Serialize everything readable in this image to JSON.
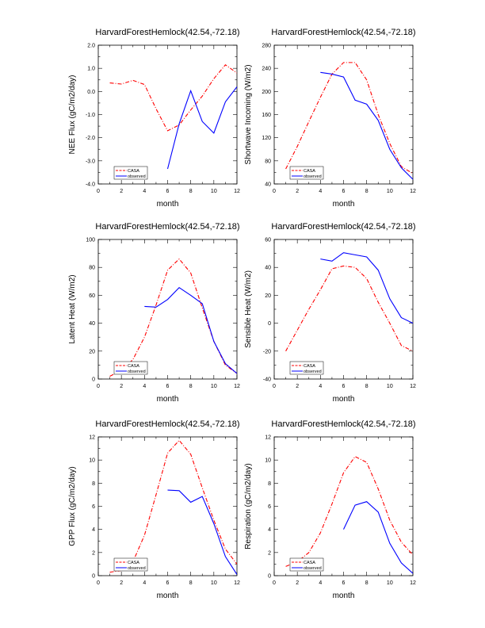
{
  "chart_data": [
    {
      "type": "line",
      "title": "HarvardForestHemlock(42.54,-72.18)",
      "xlabel": "month",
      "ylabel": "NEE Flux (gC/m2/day)",
      "xlim": [
        0,
        12
      ],
      "ylim": [
        -4,
        2
      ],
      "xticks": [
        0,
        2,
        4,
        6,
        8,
        10,
        12
      ],
      "yticks": [
        -4,
        -3,
        -2,
        -1,
        0,
        1,
        2
      ],
      "ytick_labels": [
        "-4.0",
        "-3.0",
        "-2.0",
        "-1.0",
        "0.0",
        "1.0",
        "2.0"
      ],
      "legend": {
        "position": "bottom-left",
        "entries": [
          "CASA",
          "observed"
        ]
      },
      "series": [
        {
          "name": "CASA",
          "color": "#ff0000",
          "dash": "dashed",
          "x": [
            1,
            2,
            3,
            4,
            5,
            6,
            7,
            8,
            9,
            10,
            11,
            12
          ],
          "values": [
            0.37,
            0.32,
            0.48,
            0.3,
            -0.75,
            -1.7,
            -1.45,
            -0.8,
            -0.2,
            0.55,
            1.15,
            0.8
          ]
        },
        {
          "name": "observed",
          "color": "#0000ff",
          "dash": "solid",
          "x": [
            6,
            7,
            8,
            9,
            10,
            11,
            12
          ],
          "values": [
            -3.35,
            -1.4,
            0.03,
            -1.3,
            -1.8,
            -0.45,
            0.2
          ]
        }
      ]
    },
    {
      "type": "line",
      "title": "HarvardForestHemlock(42.54,-72.18)",
      "xlabel": "month",
      "ylabel": "Shortwave Incoming (W/m2)",
      "xlim": [
        0,
        12
      ],
      "ylim": [
        40,
        280
      ],
      "xticks": [
        0,
        2,
        4,
        6,
        8,
        10,
        12
      ],
      "yticks": [
        40,
        80,
        120,
        160,
        200,
        240,
        280
      ],
      "ytick_labels": [
        "40",
        "80",
        "120",
        "160",
        "200",
        "240",
        "280"
      ],
      "legend": {
        "position": "bottom-left",
        "entries": [
          "CASA",
          "observed"
        ]
      },
      "series": [
        {
          "name": "CASA",
          "color": "#ff0000",
          "dash": "dashed",
          "x": [
            1,
            2,
            3,
            4,
            5,
            6,
            7,
            8,
            9,
            10,
            11,
            12
          ],
          "values": [
            66,
            105,
            148,
            190,
            230,
            250,
            250,
            220,
            160,
            110,
            70,
            58
          ]
        },
        {
          "name": "observed",
          "color": "#0000ff",
          "dash": "solid",
          "x": [
            4,
            5,
            6,
            7,
            8,
            9,
            10,
            11,
            12
          ],
          "values": [
            233,
            230,
            225,
            185,
            178,
            150,
            100,
            68,
            48
          ]
        }
      ]
    },
    {
      "type": "line",
      "title": "HarvardForestHemlock(42.54,-72.18)",
      "xlabel": "month",
      "ylabel": "Latent Heat (W/m2)",
      "xlim": [
        0,
        12
      ],
      "ylim": [
        0,
        100
      ],
      "xticks": [
        0,
        2,
        4,
        6,
        8,
        10,
        12
      ],
      "yticks": [
        0,
        20,
        40,
        60,
        80,
        100
      ],
      "ytick_labels": [
        "0",
        "20",
        "40",
        "60",
        "80",
        "100"
      ],
      "legend": {
        "position": "bottom-left",
        "entries": [
          "CASA",
          "observed"
        ]
      },
      "series": [
        {
          "name": "CASA",
          "color": "#ff0000",
          "dash": "dashed",
          "x": [
            1,
            2,
            3,
            4,
            5,
            6,
            7,
            8,
            9,
            10,
            11,
            12
          ],
          "values": [
            2,
            6,
            14,
            30,
            53,
            78,
            86,
            76,
            51,
            27,
            10,
            4
          ]
        },
        {
          "name": "observed",
          "color": "#0000ff",
          "dash": "solid",
          "x": [
            4,
            5,
            6,
            7,
            8,
            9,
            10,
            11,
            12
          ],
          "values": [
            52,
            51.5,
            57,
            65.5,
            60,
            54,
            27,
            11,
            4
          ]
        }
      ]
    },
    {
      "type": "line",
      "title": "HarvardForestHemlock(42.54,-72.18)",
      "xlabel": "month",
      "ylabel": "Sensible Heat (W/m2)",
      "xlim": [
        0,
        12
      ],
      "ylim": [
        -40,
        60
      ],
      "xticks": [
        0,
        2,
        4,
        6,
        8,
        10,
        12
      ],
      "yticks": [
        -40,
        -20,
        0,
        20,
        40,
        60
      ],
      "ytick_labels": [
        "-40",
        "-20",
        "0",
        "20",
        "40",
        "60"
      ],
      "legend": {
        "position": "bottom-left",
        "entries": [
          "CASA",
          "observed"
        ]
      },
      "series": [
        {
          "name": "CASA",
          "color": "#ff0000",
          "dash": "dashed",
          "x": [
            1,
            2,
            3,
            4,
            5,
            6,
            7,
            8,
            9,
            10,
            11,
            12
          ],
          "values": [
            -20,
            -5,
            10,
            24,
            39,
            41,
            40,
            32,
            15,
            0,
            -16,
            -20
          ]
        },
        {
          "name": "observed",
          "color": "#0000ff",
          "dash": "solid",
          "x": [
            4,
            5,
            6,
            7,
            8,
            9,
            10,
            11,
            12
          ],
          "values": [
            46,
            44.5,
            50.5,
            49,
            47.5,
            38,
            17.5,
            4,
            0
          ]
        }
      ]
    },
    {
      "type": "line",
      "title": "HarvardForestHemlock(42.54,-72.18)",
      "xlabel": "month",
      "ylabel": "GPP Flux (gC/m2/day)",
      "xlim": [
        0,
        12
      ],
      "ylim": [
        0,
        12
      ],
      "xticks": [
        0,
        2,
        4,
        6,
        8,
        10,
        12
      ],
      "yticks": [
        0,
        2,
        4,
        6,
        8,
        10,
        12
      ],
      "ytick_labels": [
        "0",
        "2",
        "4",
        "6",
        "8",
        "10",
        "12"
      ],
      "legend": {
        "position": "bottom-left",
        "entries": [
          "CASA",
          "observed"
        ]
      },
      "series": [
        {
          "name": "CASA",
          "color": "#ff0000",
          "dash": "dashed",
          "x": [
            1,
            2,
            3,
            4,
            5,
            6,
            7,
            8,
            9,
            10,
            11,
            12
          ],
          "values": [
            0.3,
            0.45,
            1.2,
            3.5,
            7.0,
            10.6,
            11.7,
            10.5,
            7.6,
            4.8,
            2.3,
            1.0
          ]
        },
        {
          "name": "observed",
          "color": "#0000ff",
          "dash": "solid",
          "x": [
            6,
            7,
            8,
            9,
            10,
            11,
            12
          ],
          "values": [
            7.4,
            7.35,
            6.35,
            6.85,
            4.5,
            1.65,
            0.1
          ]
        }
      ]
    },
    {
      "type": "line",
      "title": "HarvardForestHemlock(42.54,-72.18)",
      "xlabel": "month",
      "ylabel": "Respiration (gC/m2/day)",
      "xlim": [
        0,
        12
      ],
      "ylim": [
        0,
        12
      ],
      "xticks": [
        0,
        2,
        4,
        6,
        8,
        10,
        12
      ],
      "yticks": [
        0,
        2,
        4,
        6,
        8,
        10,
        12
      ],
      "ytick_labels": [
        "0",
        "2",
        "4",
        "6",
        "8",
        "10",
        "12"
      ],
      "legend": {
        "position": "bottom-left",
        "entries": [
          "CASA",
          "observed"
        ]
      },
      "series": [
        {
          "name": "CASA",
          "color": "#ff0000",
          "dash": "dashed",
          "x": [
            1,
            2,
            3,
            4,
            5,
            6,
            7,
            8,
            9,
            10,
            11,
            12
          ],
          "values": [
            0.8,
            1.2,
            2.0,
            3.7,
            6.2,
            8.9,
            10.3,
            9.8,
            7.5,
            4.8,
            2.9,
            1.8
          ]
        },
        {
          "name": "observed",
          "color": "#0000ff",
          "dash": "solid",
          "x": [
            6,
            7,
            8,
            9,
            10,
            11,
            12
          ],
          "values": [
            4.0,
            6.1,
            6.4,
            5.5,
            2.8,
            1.1,
            0.2
          ]
        }
      ]
    }
  ]
}
